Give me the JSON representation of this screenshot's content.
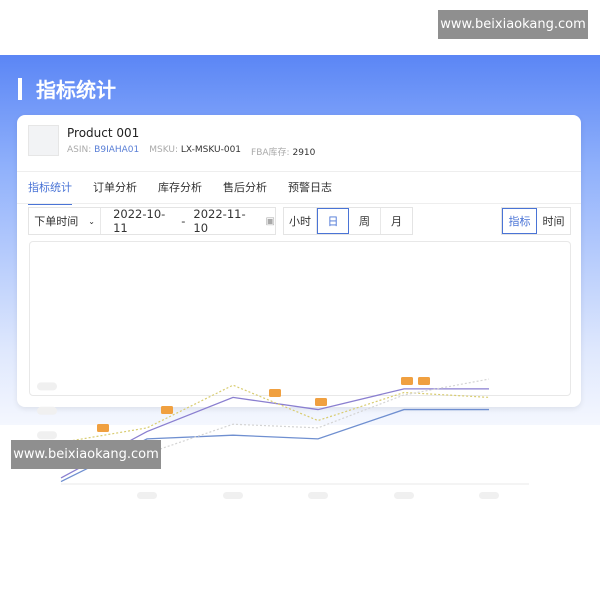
{
  "watermark": {
    "text": "www.beixiaokang.com"
  },
  "page_title": "指标统计",
  "product": {
    "name": "Product 001",
    "asin_label": "ASIN:",
    "asin": "B9IAHA01",
    "msku_label": "MSKU:",
    "msku": "LX-MSKU-001",
    "fba_label": "FBA库存:",
    "fba": "2910"
  },
  "tabs": [
    {
      "label": "指标统计",
      "active": true
    },
    {
      "label": "订单分析"
    },
    {
      "label": "库存分析"
    },
    {
      "label": "售后分析"
    },
    {
      "label": "预警日志"
    }
  ],
  "filters": {
    "time_type": "下单时间",
    "date_start": "2022-10-11",
    "date_sep": "-",
    "date_end": "2022-11-10",
    "granularity": [
      {
        "label": "小时"
      },
      {
        "label": "日",
        "selected": true
      },
      {
        "label": "周"
      },
      {
        "label": "月"
      }
    ],
    "view": [
      {
        "label": "指标",
        "selected": true
      },
      {
        "label": "时间"
      }
    ]
  },
  "colors": {
    "accent": "#4a74d6",
    "banner": "#5b86f5",
    "marker": "#f0a040"
  },
  "chart_data": {
    "type": "line",
    "ylim": [
      0,
      100
    ],
    "grid": false,
    "series": [
      {
        "values": [
          5,
          43,
          71,
          61,
          78,
          78
        ],
        "color": "#8a7fd0",
        "style": "solid"
      },
      {
        "values": [
          2,
          37,
          40,
          37,
          61,
          61
        ],
        "color": "#6f8fd0",
        "style": "solid"
      },
      {
        "values": [
          34,
          46,
          81,
          52,
          75,
          71
        ],
        "color": "#d8cc70",
        "style": "dotted"
      },
      {
        "values": [
          29,
          25,
          49,
          46,
          73,
          86
        ],
        "color": "#d4d4d4",
        "style": "dotted"
      }
    ]
  }
}
